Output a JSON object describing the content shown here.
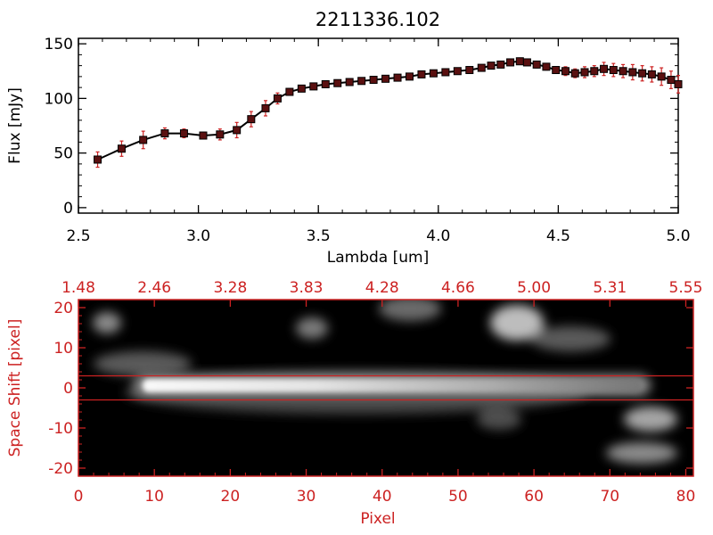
{
  "colors": {
    "axis": "#000000",
    "accent": "#cc2222",
    "background": "#ffffff",
    "image_bg": "#000000"
  },
  "chart_data": [
    {
      "type": "line",
      "title": "2211336.102",
      "xlabel": "Lambda [um]",
      "ylabel": "Flux [mJy]",
      "xlim": [
        2.5,
        5.0
      ],
      "ylim": [
        -5,
        155
      ],
      "xticks": [
        "2.5",
        "3.0",
        "3.5",
        "4.0",
        "4.5",
        "5.0"
      ],
      "yticks": [
        "0",
        "50",
        "100",
        "150"
      ],
      "grid": false,
      "series": [
        {
          "x": [
            2.58,
            2.68,
            2.77,
            2.86,
            2.94,
            3.02,
            3.09,
            3.16,
            3.22,
            3.28,
            3.33,
            3.38,
            3.43,
            3.48,
            3.53,
            3.58,
            3.63,
            3.68,
            3.73,
            3.78,
            3.83,
            3.88,
            3.93,
            3.98,
            4.03,
            4.08,
            4.13,
            4.18,
            4.22,
            4.26,
            4.3,
            4.34,
            4.37,
            4.41,
            4.45,
            4.49,
            4.53,
            4.57,
            4.61,
            4.65,
            4.69,
            4.73,
            4.77,
            4.81,
            4.85,
            4.89,
            4.93,
            4.97,
            5.0
          ],
          "y": [
            44,
            54,
            62,
            68,
            68,
            66,
            67,
            71,
            81,
            91,
            100,
            106,
            109,
            111,
            113,
            114,
            115,
            116,
            117,
            118,
            119,
            120,
            122,
            123,
            124,
            125,
            126,
            128,
            130,
            131,
            133,
            134,
            133,
            131,
            129,
            126,
            125,
            123,
            124,
            125,
            127,
            126,
            125,
            124,
            123,
            122,
            120,
            117,
            113
          ],
          "err": [
            7,
            7,
            8,
            5,
            4,
            3,
            5,
            7,
            7,
            7,
            5,
            3,
            2,
            2,
            2,
            2,
            2,
            2,
            2,
            2,
            2,
            2,
            2,
            2,
            2,
            2,
            2,
            2,
            2,
            2,
            3,
            3,
            3,
            3,
            3,
            3,
            4,
            4,
            5,
            5,
            6,
            6,
            6,
            7,
            7,
            7,
            8,
            8,
            8
          ]
        }
      ]
    },
    {
      "type": "heatmap",
      "xlabel": "Pixel",
      "ylabel": "Space Shift [pixel]",
      "xlim": [
        0,
        81
      ],
      "ylim": [
        -22,
        22
      ],
      "xticks": [
        "0",
        "10",
        "20",
        "30",
        "40",
        "50",
        "60",
        "70",
        "80"
      ],
      "yticks": [
        "-20",
        "-10",
        "0",
        "10",
        "20"
      ],
      "top_axis_ticks": [
        "1.48",
        "2.46",
        "3.28",
        "3.83",
        "4.28",
        "4.66",
        "5.00",
        "5.31",
        "5.55"
      ],
      "extraction_lines": [
        3,
        -3
      ],
      "grid": false
    }
  ]
}
